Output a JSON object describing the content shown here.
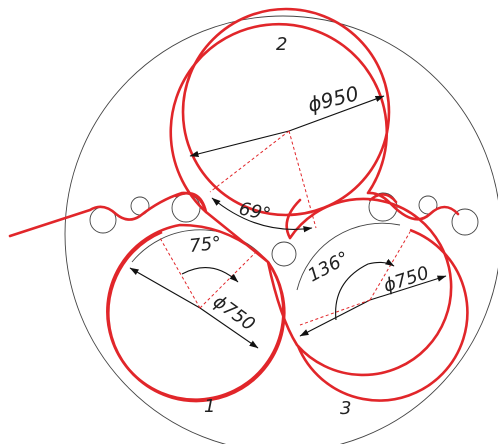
{
  "labels": {
    "roll_top_number": "2",
    "roll_left_number": "1",
    "roll_right_number": "3",
    "dia_top": "ϕ950",
    "dia_left": "ϕ750",
    "dia_right": "ϕ750",
    "angle_top": "69°",
    "angle_left": "75°",
    "angle_right": "136°"
  },
  "colors": {
    "web_line": "#e1262a",
    "outline": "#444444",
    "dimension": "#111111"
  }
}
